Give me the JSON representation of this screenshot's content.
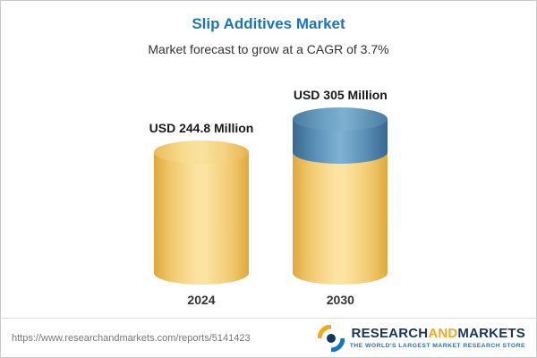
{
  "chart_data": {
    "type": "bar",
    "title": "Slip Additives Market",
    "subtitle": "Market forecast to grow at a CAGR of 3.7%",
    "categories": [
      "2024",
      "2030"
    ],
    "values": [
      244.8,
      305
    ],
    "value_labels": [
      "USD 244.8 Million",
      "USD 305 Million"
    ],
    "unit": "USD Million",
    "cagr": "3.7%",
    "colors": {
      "base_segment": "#F5CE6E",
      "growth_segment": "#5B90B5",
      "title": "#1C75BC"
    },
    "layout": {
      "bar_style": "3d-cylinder",
      "grid": false,
      "legend": false
    }
  },
  "footer": {
    "url": "https://www.researchandmarkets.com/reports/5141423",
    "logo": {
      "part1": "RESEARCH",
      "part2": "AND",
      "part3": "MARKETS",
      "tagline": "THE WORLD'S LARGEST MARKET RESEARCH STORE"
    }
  }
}
